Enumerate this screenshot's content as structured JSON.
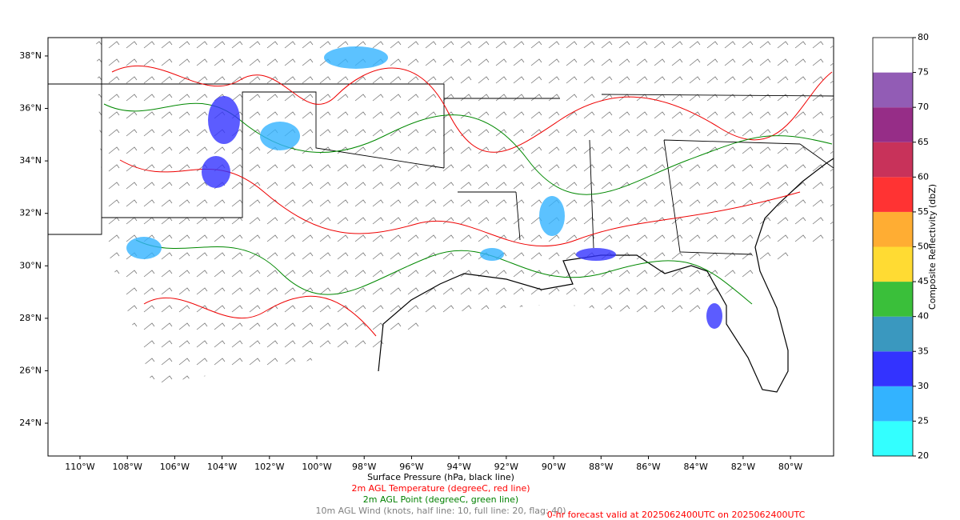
{
  "map": {
    "xlim": [
      -111.35,
      -78.18
    ],
    "ylim": [
      22.75,
      38.7
    ],
    "xticks": [
      {
        "value": -110,
        "label": "110°W"
      },
      {
        "value": -108,
        "label": "108°W"
      },
      {
        "value": -106,
        "label": "106°W"
      },
      {
        "value": -104,
        "label": "104°W"
      },
      {
        "value": -102,
        "label": "102°W"
      },
      {
        "value": -100,
        "label": "100°W"
      },
      {
        "value": -98,
        "label": "98°W"
      },
      {
        "value": -96,
        "label": "96°W"
      },
      {
        "value": -94,
        "label": "94°W"
      },
      {
        "value": -92,
        "label": "92°W"
      },
      {
        "value": -90,
        "label": "90°W"
      },
      {
        "value": -88,
        "label": "88°W"
      },
      {
        "value": -86,
        "label": "86°W"
      },
      {
        "value": -84,
        "label": "84°W"
      },
      {
        "value": -82,
        "label": "82°W"
      },
      {
        "value": -80,
        "label": "80°W"
      }
    ],
    "yticks": [
      {
        "value": 24,
        "label": "24°N"
      },
      {
        "value": 26,
        "label": "26°N"
      },
      {
        "value": 28,
        "label": "28°N"
      },
      {
        "value": 30,
        "label": "30°N"
      },
      {
        "value": 32,
        "label": "32°N"
      },
      {
        "value": 34,
        "label": "34°N"
      },
      {
        "value": 36,
        "label": "36°N"
      },
      {
        "value": 38,
        "label": "38°N"
      }
    ]
  },
  "colorbar": {
    "label": "Composite Reflectivity (dbZ)",
    "ticks": [
      20,
      25,
      30,
      35,
      40,
      45,
      50,
      55,
      60,
      65,
      70,
      75,
      80
    ],
    "colors": [
      "#33ffff",
      "#33b3ff",
      "#3333ff",
      "#3a98bf",
      "#3abf3a",
      "#ffdb33",
      "#ffad33",
      "#ff3333",
      "#c8325a",
      "#962d87",
      "#925cb5",
      "#ffffff"
    ]
  },
  "captions": [
    {
      "text": "Surface Pressure (hPa, black line)",
      "color": "#000000"
    },
    {
      "text": "2m AGL Temperature (degreeC, red line)",
      "color": "#ff0000"
    },
    {
      "text": "2m AGL Point (degreeC, green line)",
      "color": "#008000"
    },
    {
      "text": "10m AGL Wind (knots, half line: 10, full line: 20, flag: 40)",
      "color": "#808080"
    }
  ],
  "footer": {
    "text": "0-hr forecast valid at 2025062400UTC on 2025062400UTC",
    "color": "#ff0000"
  }
}
